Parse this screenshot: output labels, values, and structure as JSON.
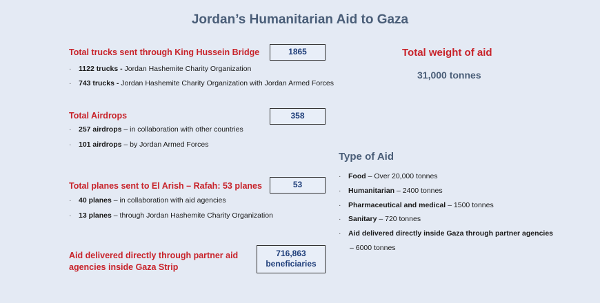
{
  "title": "Jordan’s Humanitarian Aid to Gaza",
  "trucks": {
    "heading": "Total trucks sent through King Hussein Bridge",
    "value": "1865",
    "items": [
      {
        "bold": "1122 trucks -",
        "text": " Jordan Hashemite Charity Organization"
      },
      {
        "bold": "743 trucks -",
        "text": " Jordan Hashemite Charity Organization with Jordan Armed Forces"
      }
    ]
  },
  "airdrops": {
    "heading": "Total Airdrops",
    "value": "358",
    "items": [
      {
        "bold": "257 airdrops",
        "text": " – in collaboration with other countries"
      },
      {
        "bold": "101 airdrops",
        "text": " – by Jordan Armed Forces"
      }
    ]
  },
  "planes": {
    "heading": "Total planes sent to El Arish – Rafah: 53 planes",
    "value": "53",
    "items": [
      {
        "bold": "40 planes",
        "text": " – in collaboration with aid agencies"
      },
      {
        "bold": "13 planes",
        "text": " – through Jordan Hashemite Charity Organization"
      }
    ]
  },
  "partner": {
    "heading_line1": "Aid delivered directly through partner aid",
    "heading_line2": "agencies inside Gaza Strip",
    "value_line1": "716,863",
    "value_line2": "beneficiaries"
  },
  "weight": {
    "heading": "Total weight of aid",
    "value": "31,000 tonnes"
  },
  "type_of_aid": {
    "heading": "Type of Aid",
    "items": [
      {
        "bold": "Food",
        "text": " – Over 20,000 tonnes"
      },
      {
        "bold": "Humanitarian",
        "text": " – 2400 tonnes"
      },
      {
        "bold": "Pharmaceutical and medical",
        "text": " – 1500 tonnes"
      },
      {
        "bold": "Sanitary",
        "text": " – 720 tonnes"
      },
      {
        "bold": "Aid delivered directly inside Gaza through partner agencies",
        "text": ""
      }
    ],
    "continuation": "– 6000 tonnes"
  },
  "colors": {
    "background": "#e4eaf4",
    "heading_red": "#c8232a",
    "title_slate": "#4a5e78",
    "box_text_navy": "#1f3e7a"
  }
}
